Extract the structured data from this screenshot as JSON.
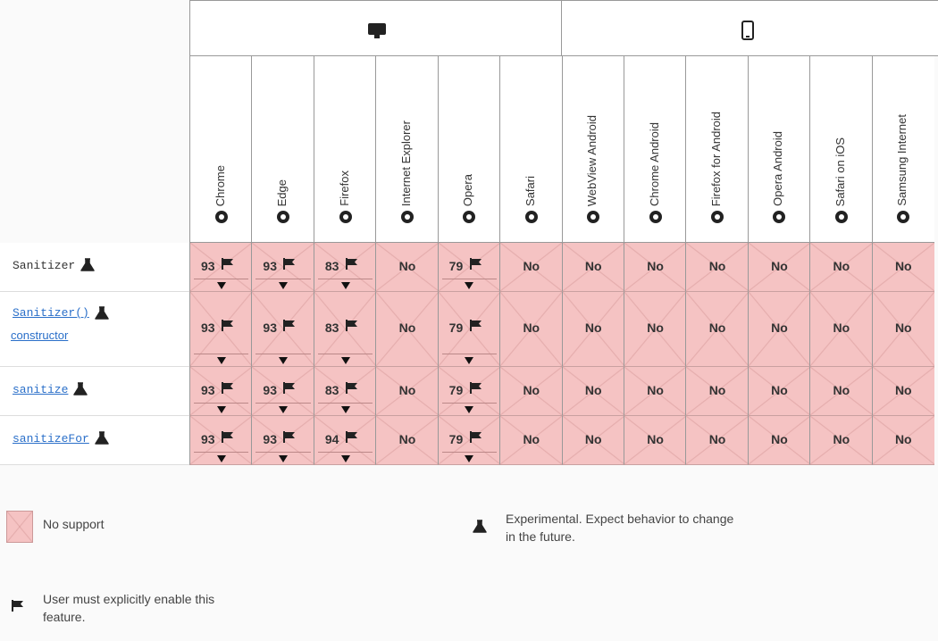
{
  "table": {
    "browsers": [
      "Chrome",
      "Edge",
      "Firefox",
      "Internet Explorer",
      "Opera",
      "Safari",
      "WebView Android",
      "Chrome Android",
      "Firefox for Android",
      "Opera Android",
      "Safari on iOS",
      "Samsung Internet"
    ],
    "features": [
      {
        "name": "Sanitizer",
        "link": false,
        "cells": [
          {
            "text": "93",
            "flag": true
          },
          {
            "text": "93",
            "flag": true
          },
          {
            "text": "83",
            "flag": true
          },
          {
            "text": "No",
            "flag": false
          },
          {
            "text": "79",
            "flag": true
          },
          {
            "text": "No",
            "flag": false
          },
          {
            "text": "No",
            "flag": false
          },
          {
            "text": "No",
            "flag": false
          },
          {
            "text": "No",
            "flag": false
          },
          {
            "text": "No",
            "flag": false
          },
          {
            "text": "No",
            "flag": false
          },
          {
            "text": "No",
            "flag": false
          }
        ]
      },
      {
        "name": "Sanitizer()",
        "name_extra": "constructor",
        "link": true,
        "cells": [
          {
            "text": "93",
            "flag": true
          },
          {
            "text": "93",
            "flag": true
          },
          {
            "text": "83",
            "flag": true
          },
          {
            "text": "No",
            "flag": false
          },
          {
            "text": "79",
            "flag": true
          },
          {
            "text": "No",
            "flag": false
          },
          {
            "text": "No",
            "flag": false
          },
          {
            "text": "No",
            "flag": false
          },
          {
            "text": "No",
            "flag": false
          },
          {
            "text": "No",
            "flag": false
          },
          {
            "text": "No",
            "flag": false
          },
          {
            "text": "No",
            "flag": false
          }
        ]
      },
      {
        "name": "sanitize",
        "link": true,
        "cells": [
          {
            "text": "93",
            "flag": true
          },
          {
            "text": "93",
            "flag": true
          },
          {
            "text": "83",
            "flag": true
          },
          {
            "text": "No",
            "flag": false
          },
          {
            "text": "79",
            "flag": true
          },
          {
            "text": "No",
            "flag": false
          },
          {
            "text": "No",
            "flag": false
          },
          {
            "text": "No",
            "flag": false
          },
          {
            "text": "No",
            "flag": false
          },
          {
            "text": "No",
            "flag": false
          },
          {
            "text": "No",
            "flag": false
          },
          {
            "text": "No",
            "flag": false
          }
        ]
      },
      {
        "name": "sanitizeFor",
        "link": true,
        "cells": [
          {
            "text": "93",
            "flag": true
          },
          {
            "text": "93",
            "flag": true
          },
          {
            "text": "94",
            "flag": true
          },
          {
            "text": "No",
            "flag": false
          },
          {
            "text": "79",
            "flag": true
          },
          {
            "text": "No",
            "flag": false
          },
          {
            "text": "No",
            "flag": false
          },
          {
            "text": "No",
            "flag": false
          },
          {
            "text": "No",
            "flag": false
          },
          {
            "text": "No",
            "flag": false
          },
          {
            "text": "No",
            "flag": false
          },
          {
            "text": "No",
            "flag": false
          }
        ]
      }
    ]
  },
  "legend": {
    "no_support": "No support",
    "experimental": "Experimental. Expect behavior to change in the future.",
    "flag": "User must explicitly enable this feature."
  }
}
